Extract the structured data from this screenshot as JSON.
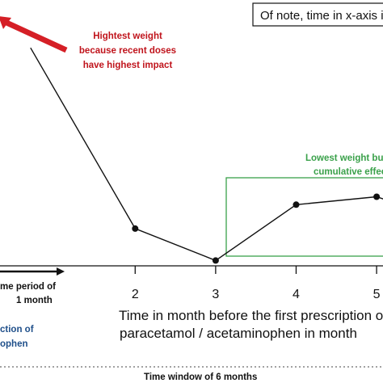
{
  "chart_data": {
    "type": "line",
    "x": [
      0.7,
      2,
      3,
      4,
      5,
      5.2
    ],
    "y": [
      0.82,
      0.14,
      0.02,
      0.23,
      0.26,
      0.24
    ],
    "xlim": [
      0.2,
      5.2
    ],
    "ylim": [
      0,
      1
    ],
    "xticks": [
      2,
      3,
      4,
      5
    ],
    "xtick_labels": [
      "2",
      "3",
      "4",
      "5"
    ],
    "xlabel_line1": "Time in month before the first prescription o",
    "xlabel_line2": "paracetamol / acetaminophen in month",
    "grid": false,
    "marker_points": [
      [
        2,
        0.14
      ],
      [
        3,
        0.02
      ],
      [
        4,
        0.23
      ],
      [
        5,
        0.26
      ]
    ]
  },
  "annotations": {
    "red_note": [
      "Hightest weight",
      "because recent doses",
      "have highest impact"
    ],
    "green_note": [
      "Lowest weight bu",
      "cumulative effec"
    ],
    "box_note": "Of note, time in x-axis is",
    "period_note": [
      "me period of",
      "1 month"
    ],
    "blue_note": [
      "ction of",
      "ophen"
    ],
    "window_note": "Time window of 6 months"
  },
  "colors": {
    "red": "#d51f26",
    "green": "#3aa14a",
    "blue": "#1f4f8a",
    "line": "#111111"
  }
}
